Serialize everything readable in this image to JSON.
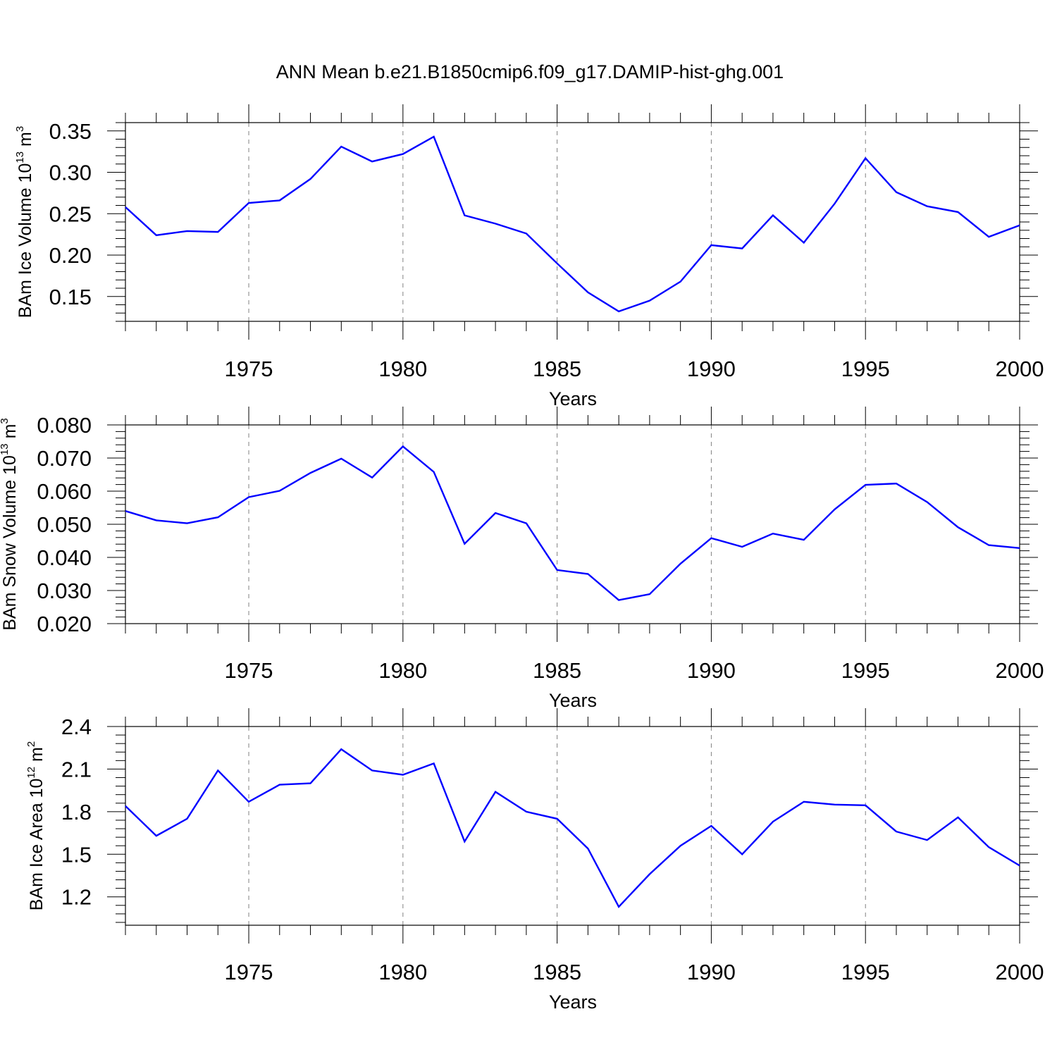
{
  "title": "ANN Mean b.e21.B1850cmip6.f09_g17.DAMIP-hist-ghg.001",
  "colors": {
    "series": "#0000ff",
    "axes": "#000000",
    "grid": "#808080"
  },
  "chart_data": [
    {
      "type": "line",
      "ylabel": {
        "text": "BAm Ice Volume 10",
        "exponent": "13",
        "unit": "m",
        "unit_exponent": "3"
      },
      "xlabel": "Years",
      "xlim": [
        1971,
        2000
      ],
      "ylim": [
        0.12,
        0.36
      ],
      "xticks": [
        1975,
        1980,
        1985,
        1990,
        1995,
        2000
      ],
      "xtick_labels": [
        "1975",
        "1980",
        "1985",
        "1990",
        "1995",
        "2000"
      ],
      "yticks": [
        0.15,
        0.2,
        0.25,
        0.3,
        0.35
      ],
      "ytick_labels": [
        "0.15",
        "0.20",
        "0.25",
        "0.30",
        "0.35"
      ],
      "grid": "vertical dashed at major x ticks",
      "x": [
        1971,
        1972,
        1973,
        1974,
        1975,
        1976,
        1977,
        1978,
        1979,
        1980,
        1981,
        1982,
        1983,
        1984,
        1985,
        1986,
        1987,
        1988,
        1989,
        1990,
        1991,
        1992,
        1993,
        1994,
        1995,
        1996,
        1997,
        1998,
        1999,
        2000
      ],
      "series": [
        {
          "values": [
            0.258,
            0.224,
            0.229,
            0.228,
            0.263,
            0.266,
            0.292,
            0.331,
            0.313,
            0.322,
            0.343,
            0.248,
            0.238,
            0.226,
            0.19,
            0.155,
            0.132,
            0.145,
            0.168,
            0.212,
            0.208,
            0.248,
            0.215,
            0.262,
            0.317,
            0.276,
            0.259,
            0.252,
            0.222,
            0.236
          ]
        }
      ]
    },
    {
      "type": "line",
      "ylabel": {
        "text": "BAm Snow Volume 10",
        "exponent": "13",
        "unit": "m",
        "unit_exponent": "3"
      },
      "xlabel": "Years",
      "xlim": [
        1971,
        2000
      ],
      "ylim": [
        0.02,
        0.08
      ],
      "xticks": [
        1975,
        1980,
        1985,
        1990,
        1995,
        2000
      ],
      "xtick_labels": [
        "1975",
        "1980",
        "1985",
        "1990",
        "1995",
        "2000"
      ],
      "yticks": [
        0.02,
        0.03,
        0.04,
        0.05,
        0.06,
        0.07,
        0.08
      ],
      "ytick_labels": [
        "0.020",
        "0.030",
        "0.040",
        "0.050",
        "0.060",
        "0.070",
        "0.080"
      ],
      "grid": "vertical dashed at major x ticks",
      "x": [
        1971,
        1972,
        1973,
        1974,
        1975,
        1976,
        1977,
        1978,
        1979,
        1980,
        1981,
        1982,
        1983,
        1984,
        1985,
        1986,
        1987,
        1988,
        1989,
        1990,
        1991,
        1992,
        1993,
        1994,
        1995,
        1996,
        1997,
        1998,
        1999,
        2000
      ],
      "series": [
        {
          "values": [
            0.054,
            0.0512,
            0.0503,
            0.0521,
            0.0582,
            0.0601,
            0.0655,
            0.0698,
            0.0641,
            0.0735,
            0.0658,
            0.0441,
            0.0534,
            0.0503,
            0.0362,
            0.035,
            0.0271,
            0.0289,
            0.0381,
            0.0458,
            0.0432,
            0.0472,
            0.0453,
            0.0545,
            0.0619,
            0.0623,
            0.0567,
            0.0491,
            0.0437,
            0.0428
          ]
        }
      ]
    },
    {
      "type": "line",
      "ylabel": {
        "text": "BAm Ice Area 10",
        "exponent": "12",
        "unit": "m",
        "unit_exponent": "2"
      },
      "xlabel": "Years",
      "xlim": [
        1971,
        2000
      ],
      "ylim": [
        1.0,
        2.4
      ],
      "xticks": [
        1975,
        1980,
        1985,
        1990,
        1995,
        2000
      ],
      "xtick_labels": [
        "1975",
        "1980",
        "1985",
        "1990",
        "1995",
        "2000"
      ],
      "yticks": [
        1.2,
        1.5,
        1.8,
        2.1,
        2.4
      ],
      "ytick_labels": [
        "1.2",
        "1.5",
        "1.8",
        "2.1",
        "2.4"
      ],
      "grid": "vertical dashed at major x ticks",
      "x": [
        1971,
        1972,
        1973,
        1974,
        1975,
        1976,
        1977,
        1978,
        1979,
        1980,
        1981,
        1982,
        1983,
        1984,
        1985,
        1986,
        1987,
        1988,
        1989,
        1990,
        1991,
        1992,
        1993,
        1994,
        1995,
        1996,
        1997,
        1998,
        1999,
        2000
      ],
      "series": [
        {
          "values": [
            1.84,
            1.63,
            1.75,
            2.09,
            1.87,
            1.99,
            2.0,
            2.24,
            2.09,
            2.06,
            2.14,
            1.59,
            1.94,
            1.8,
            1.75,
            1.54,
            1.13,
            1.36,
            1.56,
            1.7,
            1.5,
            1.73,
            1.87,
            1.85,
            1.845,
            1.66,
            1.6,
            1.76,
            1.55,
            1.42
          ]
        }
      ]
    }
  ]
}
